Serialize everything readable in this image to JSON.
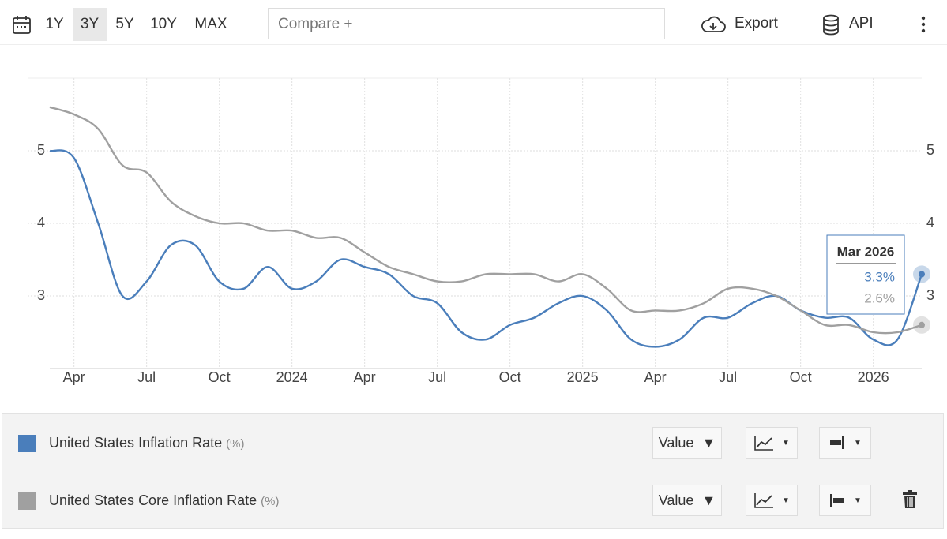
{
  "toolbar": {
    "ranges": [
      "1Y",
      "3Y",
      "5Y",
      "10Y",
      "MAX"
    ],
    "active_range": "3Y",
    "compare": "Compare +",
    "export": "Export",
    "api": "API"
  },
  "chart_data": {
    "type": "line",
    "categories": [
      null,
      "Apr",
      null,
      null,
      "Jul",
      null,
      null,
      "Oct",
      null,
      null,
      "2024",
      null,
      null,
      "Apr",
      null,
      null,
      "Jul",
      null,
      null,
      "Oct",
      null,
      null,
      "2025",
      null,
      null,
      "Apr",
      null,
      null,
      "Jul",
      null,
      null,
      "Oct",
      null,
      null,
      "2026",
      null,
      null
    ],
    "series": [
      {
        "name": "United States Inflation Rate",
        "unit": "(%)",
        "view": "Value",
        "color": "#4a7ebb",
        "values": [
          5.0,
          4.9,
          4.0,
          3.0,
          3.2,
          3.7,
          3.7,
          3.2,
          3.1,
          3.4,
          3.1,
          3.2,
          3.5,
          3.4,
          3.3,
          3.0,
          2.9,
          2.5,
          2.4,
          2.6,
          2.7,
          2.9,
          3.0,
          2.8,
          2.4,
          2.3,
          2.4,
          2.7,
          2.7,
          2.9,
          3.0,
          2.8,
          2.7,
          2.7,
          2.4,
          2.4,
          3.3
        ]
      },
      {
        "name": "United States Core Inflation Rate",
        "unit": "(%)",
        "view": "Value",
        "color": "#a0a0a0",
        "axis": "y2",
        "values": [
          5.6,
          5.5,
          5.3,
          4.8,
          4.7,
          4.3,
          4.1,
          4.0,
          4.0,
          3.9,
          3.9,
          3.8,
          3.8,
          3.6,
          3.4,
          3.3,
          3.2,
          3.2,
          3.3,
          3.3,
          3.3,
          3.2,
          3.3,
          3.1,
          2.8,
          2.8,
          2.8,
          2.9,
          3.1,
          3.1,
          3.0,
          2.8,
          2.6,
          2.6,
          2.5,
          2.5,
          2.6
        ]
      }
    ],
    "ylim": [
      2,
      6
    ],
    "yticks": [
      3,
      4,
      5
    ],
    "y2lim": [
      2,
      6
    ],
    "y2ticks": [
      3,
      4,
      5
    ],
    "grid": true,
    "tooltip": {
      "title": "Mar 2026",
      "labels": [
        "3.3%",
        "2.6%"
      ]
    }
  }
}
